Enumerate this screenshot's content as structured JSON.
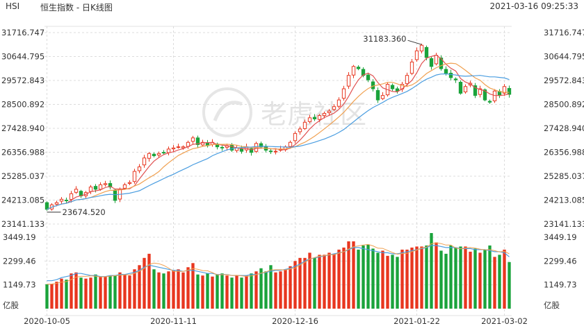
{
  "header": {
    "symbol": "HSI",
    "name": "恒生指数 - 日K线图",
    "timestamp": "2021-03-16 09:25:33"
  },
  "watermark": "老虎社区",
  "colors": {
    "up": "#e8361f",
    "down": "#1aa33b",
    "ma5": "#e05050",
    "ma10": "#f0a050",
    "ma20": "#4a9de0",
    "grid": "#dcdcdc"
  },
  "chart_data": [
    {
      "type": "candlestick",
      "yticks": [
        "31716.747",
        "30644.795",
        "29572.843",
        "28500.892",
        "27428.940",
        "26356.988",
        "25285.037",
        "24213.085",
        "23141.133"
      ],
      "ylim": [
        23141.133,
        31716.747
      ],
      "xticks": [
        "2020-10-05",
        "2020-11-11",
        "2020-12-16",
        "2021-01-22",
        "2021-03-02"
      ],
      "max_label": "31183.360",
      "min_label": "23674.520",
      "series": [
        {
          "name": "MA5",
          "color": "#e05050"
        },
        {
          "name": "MA10",
          "color": "#f0a050"
        },
        {
          "name": "MA20",
          "color": "#4a9de0"
        }
      ],
      "closes": [
        23800,
        24000,
        24100,
        24250,
        24200,
        24500,
        24700,
        24400,
        24550,
        24800,
        24700,
        24900,
        24950,
        24800,
        24200,
        24700,
        24900,
        25000,
        25500,
        25700,
        26100,
        26300,
        26200,
        26300,
        26350,
        26500,
        26550,
        26600,
        26600,
        26800,
        27000,
        26700,
        26800,
        26650,
        26800,
        26600,
        26550,
        26650,
        26450,
        26550,
        26400,
        26600,
        26350,
        26750,
        26600,
        26450,
        26400,
        26400,
        26500,
        26600,
        26800,
        27200,
        27400,
        27700,
        27900,
        27850,
        28000,
        28100,
        28200,
        28400,
        28700,
        29200,
        29800,
        30200,
        30100,
        29800,
        29600,
        29200,
        28700,
        28900,
        29400,
        29200,
        29100,
        29400,
        29800,
        30400,
        30900,
        31150,
        30600,
        30200,
        30700,
        30100,
        29900,
        29700,
        29600,
        29000,
        29300,
        29450,
        28900,
        29200,
        28700,
        28600,
        29100,
        28900,
        29300,
        28950
      ]
    },
    {
      "type": "bar",
      "title": "亿股",
      "yticks": [
        "3449.19",
        "2299.46",
        "1149.73",
        "亿股"
      ],
      "ylim": [
        0,
        3449.19
      ],
      "volumes": [
        1180,
        1200,
        1300,
        1450,
        1400,
        1700,
        1750,
        1500,
        1450,
        1500,
        1650,
        1550,
        1550,
        1600,
        1600,
        1750,
        1650,
        1600,
        1900,
        2100,
        2450,
        2650,
        1900,
        1750,
        1700,
        1800,
        1850,
        1900,
        1750,
        2000,
        2200,
        1650,
        1600,
        1700,
        1550,
        1650,
        1700,
        1600,
        1500,
        1600,
        1500,
        1600,
        1700,
        1800,
        1950,
        1800,
        2100,
        1750,
        1800,
        1900,
        2050,
        2300,
        2450,
        2450,
        2700,
        2450,
        2600,
        2600,
        2700,
        2650,
        2850,
        2950,
        3250,
        3250,
        2850,
        3050,
        3100,
        2900,
        2700,
        2800,
        2550,
        2600,
        2500,
        2850,
        2850,
        2950,
        3000,
        3000,
        3050,
        3650,
        3200,
        2800,
        2650,
        3050,
        2950,
        3000,
        3000,
        2750,
        2900,
        2700,
        2850,
        3050,
        2500,
        2600,
        2850,
        2250
      ],
      "vol_ma": [
        1350,
        1350,
        1400,
        1500,
        1550,
        1600,
        1700,
        1700,
        1650,
        1600,
        1600,
        1550,
        1550,
        1600,
        1600,
        1650,
        1650,
        1700,
        1750,
        1850,
        2000,
        2100,
        2050,
        2000,
        1950,
        1900,
        1850,
        1850,
        1800,
        1850,
        1850,
        1800,
        1750,
        1700,
        1700,
        1650,
        1650,
        1650,
        1600,
        1600,
        1600,
        1600,
        1650,
        1650,
        1700,
        1750,
        1800,
        1850,
        1850,
        1900,
        1950,
        2050,
        2150,
        2300,
        2400,
        2450,
        2500,
        2550,
        2600,
        2650,
        2700,
        2750,
        2850,
        2950,
        2950,
        2900,
        2850,
        2800,
        2750,
        2700,
        2700,
        2650,
        2650,
        2700,
        2750,
        2800,
        2850,
        2900,
        2950,
        3050,
        3050,
        3000,
        2950,
        2950,
        2950,
        2900,
        2900,
        2900,
        2850,
        2850,
        2850,
        2800,
        2750,
        2750,
        2700,
        2500
      ]
    }
  ]
}
